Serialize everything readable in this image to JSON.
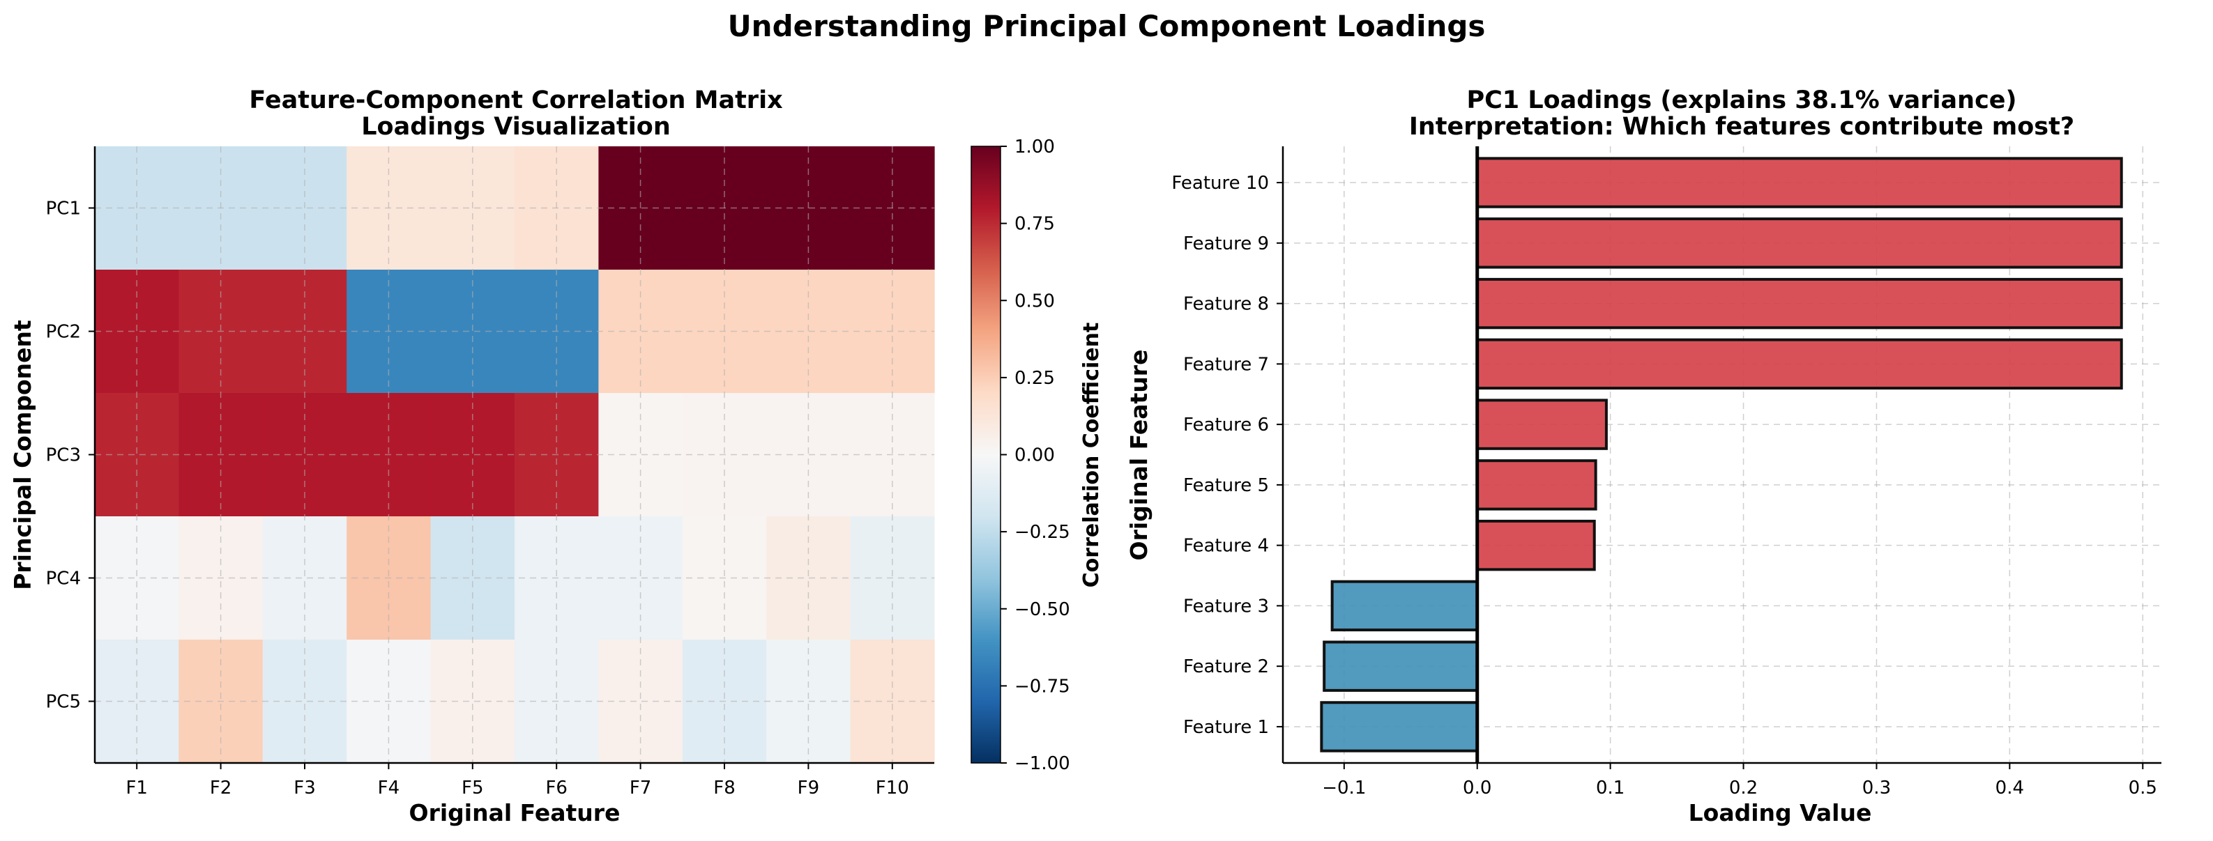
{
  "suptitle": "Understanding Principal Component Loadings",
  "chart_data": [
    {
      "type": "heatmap",
      "title_line1": "Feature-Component Correlation Matrix",
      "title_line2": "Loadings Visualization",
      "xlabel": "Original Feature",
      "ylabel": "Principal Component",
      "x_categories": [
        "F1",
        "F2",
        "F3",
        "F4",
        "F5",
        "F6",
        "F7",
        "F8",
        "F9",
        "F10"
      ],
      "y_categories": [
        "PC1",
        "PC2",
        "PC3",
        "PC4",
        "PC5"
      ],
      "values": [
        [
          -0.22,
          -0.22,
          -0.22,
          0.12,
          0.12,
          0.15,
          1.0,
          1.0,
          1.0,
          1.0
        ],
        [
          0.8,
          0.76,
          0.76,
          -0.66,
          -0.66,
          -0.66,
          0.22,
          0.22,
          0.22,
          0.22
        ],
        [
          0.76,
          0.8,
          0.8,
          0.8,
          0.8,
          0.76,
          0.02,
          0.03,
          0.03,
          0.03
        ],
        [
          -0.02,
          0.04,
          -0.06,
          0.28,
          -0.2,
          -0.06,
          -0.06,
          0.02,
          0.08,
          -0.08
        ],
        [
          -0.1,
          0.24,
          -0.12,
          -0.02,
          0.05,
          -0.06,
          0.05,
          -0.12,
          -0.05,
          0.14
        ]
      ],
      "colormap": "RdBu_r",
      "vmin": -1.0,
      "vmax": 1.0,
      "colorbar_label": "Correlation Coefficient",
      "colorbar_ticks": [
        "−1.00",
        "−0.75",
        "−0.50",
        "−0.25",
        "0.00",
        "0.25",
        "0.50",
        "0.75",
        "1.00"
      ],
      "grid": true
    },
    {
      "type": "bar",
      "orientation": "horizontal",
      "title_line1": "PC1 Loadings (explains 38.1% variance)",
      "title_line2": "Interpretation: Which features contribute most?",
      "xlabel": "Loading Value",
      "ylabel": "Original Feature",
      "categories": [
        "Feature 1",
        "Feature 2",
        "Feature 3",
        "Feature 4",
        "Feature 5",
        "Feature 6",
        "Feature 7",
        "Feature 8",
        "Feature 9",
        "Feature 10"
      ],
      "values": [
        -0.117,
        -0.115,
        -0.109,
        0.088,
        0.089,
        0.097,
        0.484,
        0.484,
        0.484,
        0.484
      ],
      "xlim": [
        -0.146,
        0.514
      ],
      "xticks": [
        -0.1,
        0.0,
        0.1,
        0.2,
        0.3,
        0.4,
        0.5
      ],
      "xtick_labels": [
        "−0.1",
        "0.0",
        "0.1",
        "0.2",
        "0.3",
        "0.4",
        "0.5"
      ],
      "positive_color": "#d6424a",
      "negative_color": "#4391b8",
      "grid": true
    }
  ]
}
